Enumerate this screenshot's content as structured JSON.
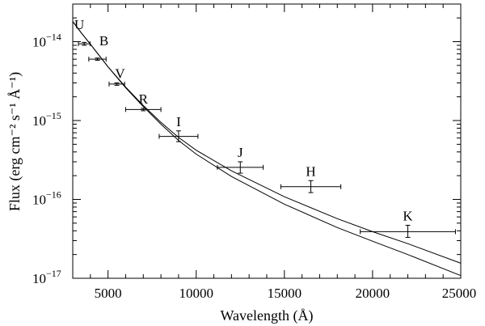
{
  "chart_data": {
    "type": "scatter",
    "title": "",
    "xlabel": "Wavelength (Å)",
    "ylabel": "Flux (erg cm⁻² s⁻¹ Å⁻¹)",
    "xlim": [
      3000,
      25000
    ],
    "ylim": [
      1e-17,
      3e-14
    ],
    "yscale": "log",
    "grid": false,
    "x_ticks": [
      5000,
      10000,
      15000,
      20000,
      25000
    ],
    "x_tick_labels": [
      "5000",
      "10000",
      "15000",
      "20000",
      "25000"
    ],
    "y_ticks": [
      1e-14,
      1e-15,
      1e-16,
      1e-17
    ],
    "y_tick_labels": [
      {
        "base": "10",
        "exp": "−14"
      },
      {
        "base": "10",
        "exp": "−15"
      },
      {
        "base": "10",
        "exp": "−16"
      },
      {
        "base": "10",
        "exp": "−17"
      }
    ],
    "points": [
      {
        "band": "U",
        "x": 3650,
        "y": 9.4e-15,
        "xerr": 330,
        "yerr_lo": 9e-15,
        "yerr_hi": 9.8e-15
      },
      {
        "band": "B",
        "x": 4400,
        "y": 6e-15,
        "xerr": 490,
        "yerr_lo": 5.8e-15,
        "yerr_hi": 6.2e-15
      },
      {
        "band": "V",
        "x": 5500,
        "y": 2.9e-15,
        "xerr": 440,
        "yerr_lo": 2.8e-15,
        "yerr_hi": 3e-15
      },
      {
        "band": "R",
        "x": 7000,
        "y": 1.38e-15,
        "xerr": 1000,
        "yerr_lo": 1.33e-15,
        "yerr_hi": 1.43e-15
      },
      {
        "band": "I",
        "x": 9000,
        "y": 6.3e-16,
        "xerr": 1100,
        "yerr_lo": 5.4e-16,
        "yerr_hi": 7.4e-16
      },
      {
        "band": "J",
        "x": 12500,
        "y": 2.55e-16,
        "xerr": 1300,
        "yerr_lo": 2.15e-16,
        "yerr_hi": 3e-16
      },
      {
        "band": "H",
        "x": 16500,
        "y": 1.45e-16,
        "xerr": 1700,
        "yerr_lo": 1.22e-16,
        "yerr_hi": 1.73e-16
      },
      {
        "band": "K",
        "x": 22000,
        "y": 3.9e-17,
        "xerr": 2700,
        "yerr_lo": 3.3e-17,
        "yerr_hi": 4.7e-17
      }
    ],
    "model_curves": [
      {
        "x": [
          3000,
          3500,
          4000,
          5000,
          6000,
          7000,
          8000,
          9000,
          10000,
          12000,
          15000,
          18000,
          20000,
          22000,
          25000
        ],
        "y": [
          1.8e-14,
          1.28e-14,
          9.3e-15,
          4.8e-15,
          2.65e-15,
          1.55e-15,
          9.5e-16,
          6.1e-16,
          4.2e-16,
          2.3e-16,
          1.08e-16,
          5.7e-17,
          3.9e-17,
          2.75e-17,
          1.55e-17
        ]
      },
      {
        "x": [
          3000,
          3500,
          4000,
          5000,
          6000,
          7000,
          8000,
          9000,
          10000,
          12000,
          15000,
          18000,
          20000,
          22000,
          25000
        ],
        "y": [
          1.8e-14,
          1.28e-14,
          9.3e-15,
          4.8e-15,
          2.6e-15,
          1.5e-15,
          9e-16,
          5.6e-16,
          3.75e-16,
          1.95e-16,
          8.7e-17,
          4.4e-17,
          2.95e-17,
          2e-17,
          1.08e-17
        ]
      }
    ]
  }
}
